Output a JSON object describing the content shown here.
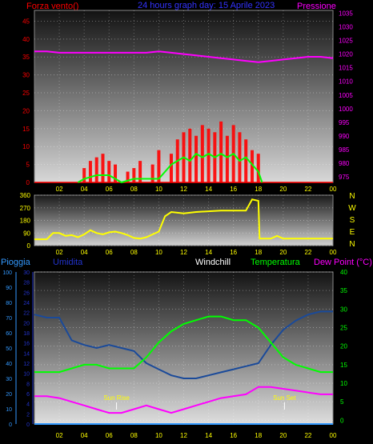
{
  "header": {
    "left_label": "Forza vento()",
    "title": "24 hours graph day:  15 Aprile 2023",
    "right_label": "Pressione"
  },
  "colors": {
    "wind": "#ff0000",
    "gust": "#00ff00",
    "pressure": "#ff00ff",
    "direction": "#ffff00",
    "rain": "#3399ff",
    "humidity": "#1a4a9a",
    "temperature": "#00ff00",
    "dewpoint": "#ff00ff",
    "label_red": "#ff0000",
    "label_blue": "#3333ff",
    "label_magenta": "#ff00ff",
    "label_yellow": "#ffff00",
    "label_green": "#00ff00",
    "label_white": "#ffffff",
    "label_rain": "#3399ff",
    "label_humidity": "#2233cc"
  },
  "x_ticks": [
    "02",
    "04",
    "06",
    "08",
    "10",
    "12",
    "14",
    "16",
    "18",
    "20",
    "22",
    "00"
  ],
  "chart_data": [
    {
      "type": "line",
      "series": [
        {
          "name": "Forza vento()",
          "x": [
            3.5,
            4,
            4.5,
            5,
            5.5,
            6,
            6.5,
            7,
            7.5,
            8,
            8.5,
            9,
            9.5,
            10,
            10.5,
            11,
            11.5,
            12,
            12.5,
            13,
            13.5,
            14,
            14.5,
            15,
            15.5,
            16,
            16.5,
            17,
            17.5,
            18,
            18.5
          ],
          "y": [
            0,
            4,
            6,
            7,
            8,
            6,
            5,
            0,
            3,
            4,
            6,
            0,
            5,
            9,
            0,
            8,
            12,
            14,
            15,
            13,
            16,
            15,
            14,
            17,
            13,
            16,
            14,
            12,
            9,
            8,
            0
          ]
        },
        {
          "name": "",
          "x": [
            3.5,
            4,
            5,
            6,
            7,
            8,
            9,
            10,
            10.5,
            11,
            11.5,
            12,
            12.5,
            13,
            13.5,
            14,
            14.5,
            15,
            15.5,
            16,
            16.5,
            17,
            17.5,
            18,
            18.3
          ],
          "y": [
            0,
            1,
            2,
            2,
            0,
            1,
            1,
            1,
            3,
            5,
            6,
            7,
            6,
            8,
            7,
            8,
            7,
            8,
            7,
            8,
            6,
            7,
            5,
            3,
            0
          ]
        },
        {
          "name": "Pressione",
          "x": [
            0,
            1,
            2,
            3,
            4,
            5,
            6,
            7,
            8,
            9,
            10,
            11,
            12,
            13,
            14,
            15,
            16,
            17,
            18,
            19,
            20,
            21,
            22,
            23,
            24
          ],
          "y": [
            1021,
            1021,
            1020.5,
            1020.5,
            1020.5,
            1020.5,
            1020.5,
            1020.5,
            1020.5,
            1020.5,
            1021,
            1020.5,
            1020,
            1019.5,
            1019,
            1018.5,
            1018,
            1017.5,
            1017,
            1017.5,
            1018,
            1018.5,
            1019,
            1019,
            1018.5
          ]
        }
      ],
      "y_ticks_left": [
        0,
        5,
        10,
        15,
        20,
        25,
        30,
        35,
        40,
        45
      ],
      "y_ticks_right": [
        975,
        980,
        985,
        990,
        995,
        1000,
        1005,
        1010,
        1015,
        1020,
        1025,
        1030,
        1035
      ],
      "ylim": [
        0,
        48
      ],
      "ylim_right": [
        973,
        1036
      ]
    },
    {
      "type": "line",
      "series": [
        {
          "name": "",
          "x": [
            0,
            1,
            1.5,
            2,
            2.5,
            3,
            3.5,
            4,
            4.5,
            5,
            5.5,
            6,
            6.5,
            7,
            7.5,
            8,
            8.5,
            9,
            9.5,
            10,
            10.5,
            11,
            12,
            13,
            14,
            15,
            16,
            17,
            17.5,
            18,
            18.1,
            18.5,
            19,
            19.5,
            20,
            22,
            24
          ],
          "y": [
            45,
            45,
            90,
            90,
            70,
            75,
            60,
            80,
            110,
            90,
            80,
            95,
            100,
            90,
            75,
            55,
            50,
            60,
            80,
            100,
            210,
            240,
            230,
            240,
            245,
            250,
            250,
            250,
            330,
            320,
            50,
            50,
            50,
            70,
            50,
            50,
            50
          ]
        }
      ],
      "y_ticks": [
        0,
        90,
        180,
        270,
        360
      ],
      "ylim": [
        0,
        360
      ],
      "right_labels": [
        "N",
        "W",
        "S",
        "E",
        "N"
      ]
    },
    {
      "type": "line",
      "series": [
        {
          "name": "Pioggia",
          "x": [
            0,
            24
          ],
          "y": [
            0,
            0
          ]
        },
        {
          "name": "Umidita",
          "x": [
            0,
            1,
            2,
            3,
            4,
            5,
            6,
            7,
            8,
            9,
            10,
            11,
            12,
            13,
            14,
            15,
            16,
            17,
            18,
            19,
            20,
            21,
            22,
            23,
            24
          ],
          "y": [
            72,
            70,
            70,
            55,
            52,
            50,
            52,
            50,
            48,
            40,
            36,
            32,
            30,
            30,
            32,
            34,
            36,
            38,
            40,
            52,
            62,
            68,
            72,
            74,
            74
          ]
        },
        {
          "name": "Temperatura",
          "x": [
            0,
            1,
            2,
            3,
            4,
            5,
            6,
            7,
            8,
            9,
            10,
            11,
            12,
            13,
            14,
            15,
            16,
            17,
            18,
            19,
            20,
            21,
            22,
            23,
            24
          ],
          "y": [
            13,
            13,
            13,
            14,
            15,
            15,
            14,
            14,
            14,
            17,
            21,
            24,
            26,
            27,
            28,
            28,
            27,
            27,
            25,
            21,
            17,
            15,
            14,
            13,
            13
          ]
        },
        {
          "name": "Dew Point (°C)",
          "x": [
            0,
            1,
            2,
            3,
            4,
            5,
            6,
            7,
            8,
            9,
            10,
            11,
            12,
            13,
            14,
            15,
            16,
            17,
            18,
            19,
            20,
            21,
            22,
            23,
            24
          ],
          "y": [
            6.5,
            6.5,
            6,
            5,
            4,
            3,
            2,
            2,
            3,
            4,
            3,
            2,
            3,
            4,
            5,
            6,
            6.5,
            7,
            9,
            9,
            8.5,
            8,
            7.5,
            7,
            7
          ]
        }
      ],
      "y_ticks_rain": [
        0,
        10,
        20,
        30,
        40,
        50,
        60,
        70,
        80,
        90,
        100
      ],
      "y_ticks_humidity": [
        0,
        2,
        4,
        6,
        8,
        10,
        12,
        14,
        16,
        18,
        20,
        22,
        24,
        26,
        28,
        30
      ],
      "y_ticks_right": [
        0,
        5,
        10,
        15,
        20,
        25,
        30,
        35,
        40
      ],
      "ylim_right": [
        -1,
        40
      ],
      "annotations": [
        {
          "text": "Sun Rise",
          "x": 6.6
        },
        {
          "text": "Sun Set",
          "x": 20.1
        }
      ]
    }
  ],
  "panel3_labels": {
    "rain": "Pioggia",
    "humidity": "Umidita",
    "windchill": "Windchill",
    "temperature": "Temperatura",
    "dewpoint": "Dew Point (°C)"
  }
}
